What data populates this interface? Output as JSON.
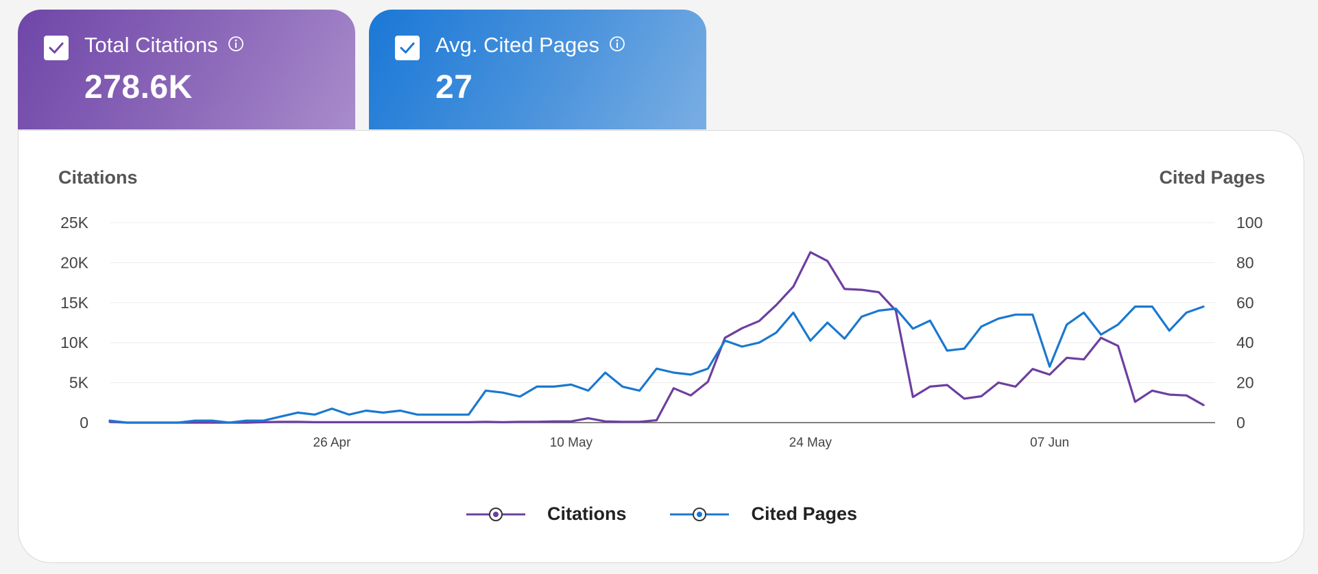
{
  "cards": [
    {
      "title": "Total Citations",
      "value": "278.6K",
      "checked": true
    },
    {
      "title": "Avg. Cited Pages",
      "value": "27",
      "checked": true
    }
  ],
  "colors": {
    "citations": "#6c3fa0",
    "cited_pages": "#1a78d0"
  },
  "chart_data": {
    "type": "line",
    "left_axis_title": "Citations",
    "right_axis_title": "Cited Pages",
    "left_ticks": [
      "0",
      "5K",
      "10K",
      "15K",
      "20K",
      "25K"
    ],
    "right_ticks": [
      "0",
      "20",
      "40",
      "60",
      "80",
      "100"
    ],
    "ylim_left": [
      0,
      25000
    ],
    "ylim_right": [
      0,
      100
    ],
    "x_tick_labels": [
      "26 Apr",
      "10 May",
      "24 May",
      "07 Jun"
    ],
    "grid": true,
    "legend_position": "bottom-center",
    "series": [
      {
        "name": "Citations",
        "axis": "left",
        "values": [
          100,
          0,
          0,
          0,
          0,
          0,
          0,
          0,
          0,
          50,
          100,
          100,
          50,
          50,
          50,
          50,
          50,
          50,
          50,
          50,
          50,
          50,
          100,
          50,
          100,
          100,
          150,
          150,
          550,
          150,
          100,
          100,
          300,
          4300,
          3400,
          5100,
          10600,
          11800,
          12700,
          14700,
          17000,
          21300,
          20200,
          16700,
          16600,
          16300,
          14000,
          3200,
          4500,
          4700,
          3000,
          3300,
          5000,
          4500,
          6700,
          6000,
          8100,
          7900,
          10600,
          9600,
          2600,
          4000,
          3500,
          3400,
          2200
        ]
      },
      {
        "name": "Cited Pages",
        "axis": "right",
        "values": [
          1,
          0,
          0,
          0,
          0,
          1,
          1,
          0,
          1,
          1,
          3,
          5,
          4,
          7,
          4,
          6,
          5,
          6,
          4,
          4,
          4,
          4,
          16,
          15,
          13,
          18,
          18,
          19,
          16,
          25,
          18,
          16,
          27,
          25,
          24,
          27,
          41,
          38,
          40,
          45,
          55,
          41,
          50,
          42,
          53,
          56,
          57,
          47,
          51,
          36,
          37,
          48,
          52,
          54,
          54,
          28,
          49,
          55,
          44,
          49,
          58,
          58,
          46,
          55,
          58
        ]
      }
    ]
  }
}
